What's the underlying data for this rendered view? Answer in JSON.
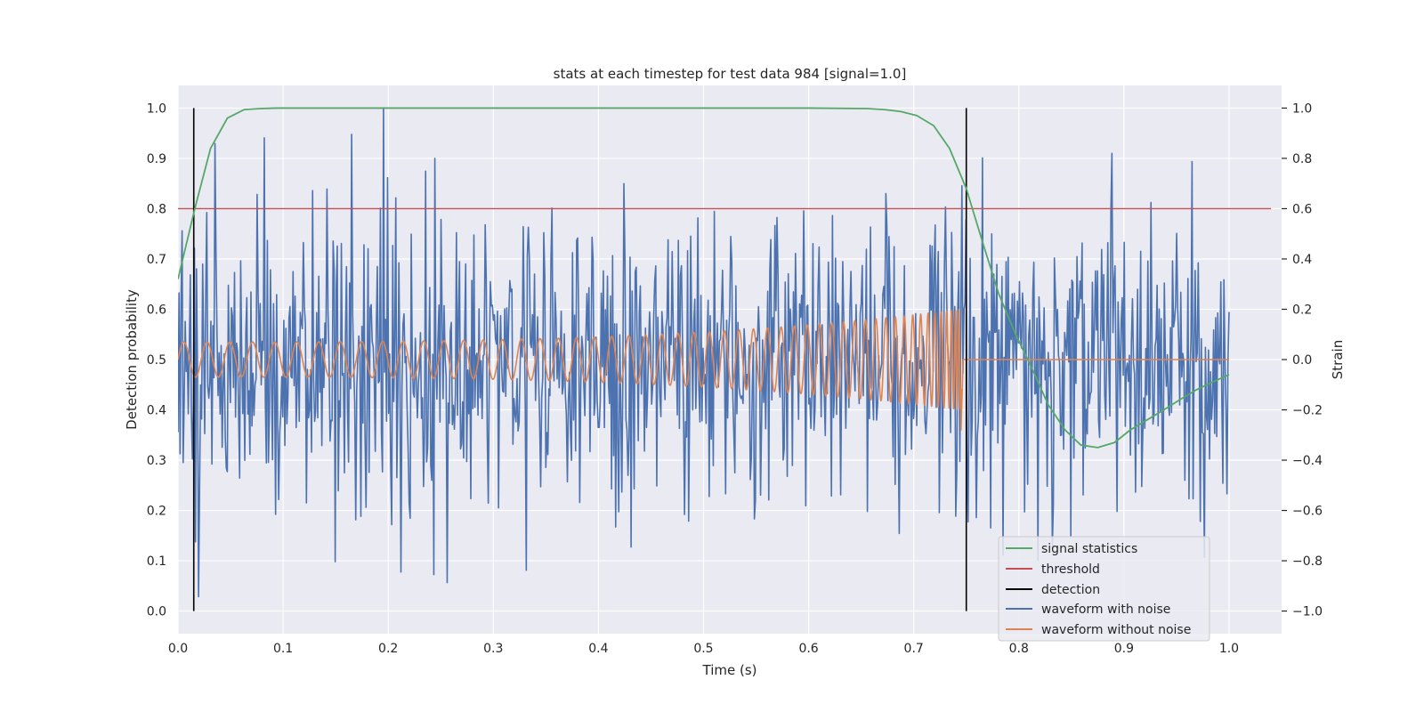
{
  "chart_data": {
    "type": "line",
    "title": "stats at each timestep for test data 984 [signal=1.0]",
    "xlabel": "Time (s)",
    "ylabel": "Detection probability",
    "y2label": "Strain",
    "xlim": [
      0.0,
      1.05
    ],
    "ylim": [
      -0.045,
      1.045
    ],
    "y2lim": [
      -1.09,
      1.09
    ],
    "grid": true,
    "legend_position": "lower-right",
    "x_ticks": [
      "0.0",
      "0.1",
      "0.2",
      "0.3",
      "0.4",
      "0.5",
      "0.6",
      "0.7",
      "0.8",
      "0.9",
      "1.0"
    ],
    "y_ticks": [
      "0.0",
      "0.1",
      "0.2",
      "0.3",
      "0.4",
      "0.5",
      "0.6",
      "0.7",
      "0.8",
      "0.9",
      "1.0"
    ],
    "y2_ticks": [
      "−1.0",
      "−0.8",
      "−0.6",
      "−0.4",
      "−0.2",
      "0.0",
      "0.2",
      "0.4",
      "0.6",
      "0.8",
      "1.0"
    ],
    "colors": {
      "signal_statistics": "#55a868",
      "threshold": "#c44e52",
      "detection": "#000000",
      "waveform_with_noise": "#4c72b0",
      "waveform_without_noise": "#dd8452"
    },
    "legend": [
      "signal statistics",
      "threshold",
      "detection",
      "waveform with noise",
      "waveform without noise"
    ],
    "series": [
      {
        "name": "signal statistics",
        "axis": "left",
        "x": [
          0.0,
          0.016,
          0.031,
          0.047,
          0.063,
          0.078,
          0.094,
          0.2,
          0.4,
          0.6,
          0.656,
          0.672,
          0.688,
          0.703,
          0.719,
          0.734,
          0.75,
          0.766,
          0.781,
          0.797,
          0.813,
          0.828,
          0.844,
          0.859,
          0.875,
          0.891,
          0.906,
          0.922,
          0.938,
          0.953,
          0.969,
          0.984,
          1.0
        ],
        "values": [
          0.66,
          0.8,
          0.92,
          0.98,
          0.997,
          0.999,
          1.0,
          1.0,
          1.0,
          1.0,
          0.999,
          0.997,
          0.993,
          0.985,
          0.965,
          0.92,
          0.84,
          0.73,
          0.63,
          0.55,
          0.48,
          0.41,
          0.36,
          0.33,
          0.325,
          0.335,
          0.36,
          0.38,
          0.4,
          0.42,
          0.44,
          0.455,
          0.47
        ]
      },
      {
        "name": "threshold",
        "axis": "left",
        "x": [
          0.0,
          1.04
        ],
        "values": [
          0.8,
          0.8
        ]
      },
      {
        "name": "detection",
        "axis": "left",
        "x": [
          0.015,
          0.75
        ],
        "ymin": 0.0,
        "ymax": 1.0
      },
      {
        "name": "waveform with noise",
        "axis": "right",
        "x_range": [
          0.0,
          1.0
        ],
        "samples": 1024,
        "amplitude_range": [
          -0.95,
          1.0
        ],
        "std": 0.3
      },
      {
        "name": "waveform without noise",
        "axis": "right",
        "x_range": [
          0.0,
          1.0
        ],
        "merger_time": 0.745,
        "start_frequency_hz": 45,
        "start_amplitude": 0.07,
        "peak_amplitude": 0.2,
        "min_value": -0.28,
        "post_merger_value": 0.0
      }
    ]
  }
}
